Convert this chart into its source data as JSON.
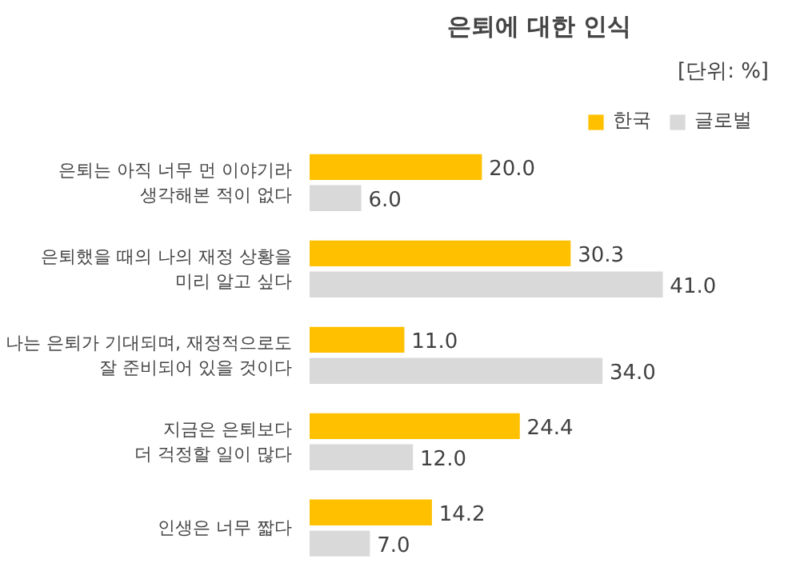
{
  "chart_data": {
    "type": "bar",
    "orientation": "horizontal",
    "title": "은퇴에 대한 인식",
    "annotations": [
      "[단위: %]"
    ],
    "categories": [
      "은퇴는 아직 너무 먼 이야기라\n생각해본 적이 없다",
      "은퇴했을 때의 나의 재정 상황을\n미리 알고 싶다",
      "나는 은퇴가 기대되며, 재정적으로도\n잘 준비되어 있을 것이다",
      "지금은 은퇴보다\n더 걱정할 일이 많다",
      "인생은 너무 짧다"
    ],
    "series": [
      {
        "name": "한국",
        "color": "#ffc000",
        "values": [
          20.0,
          30.3,
          11.0,
          24.4,
          14.2
        ],
        "value_labels": [
          "20.0",
          "30.3",
          "11.0",
          "24.4",
          "14.2"
        ]
      },
      {
        "name": "글로벌",
        "color": "#d9d9d9",
        "values": [
          6.0,
          41.0,
          34.0,
          12.0,
          7.0
        ],
        "value_labels": [
          "6.0",
          "41.0",
          "34.0",
          "12.0",
          "7.0"
        ]
      }
    ],
    "legend": "top right",
    "grid": false
  }
}
